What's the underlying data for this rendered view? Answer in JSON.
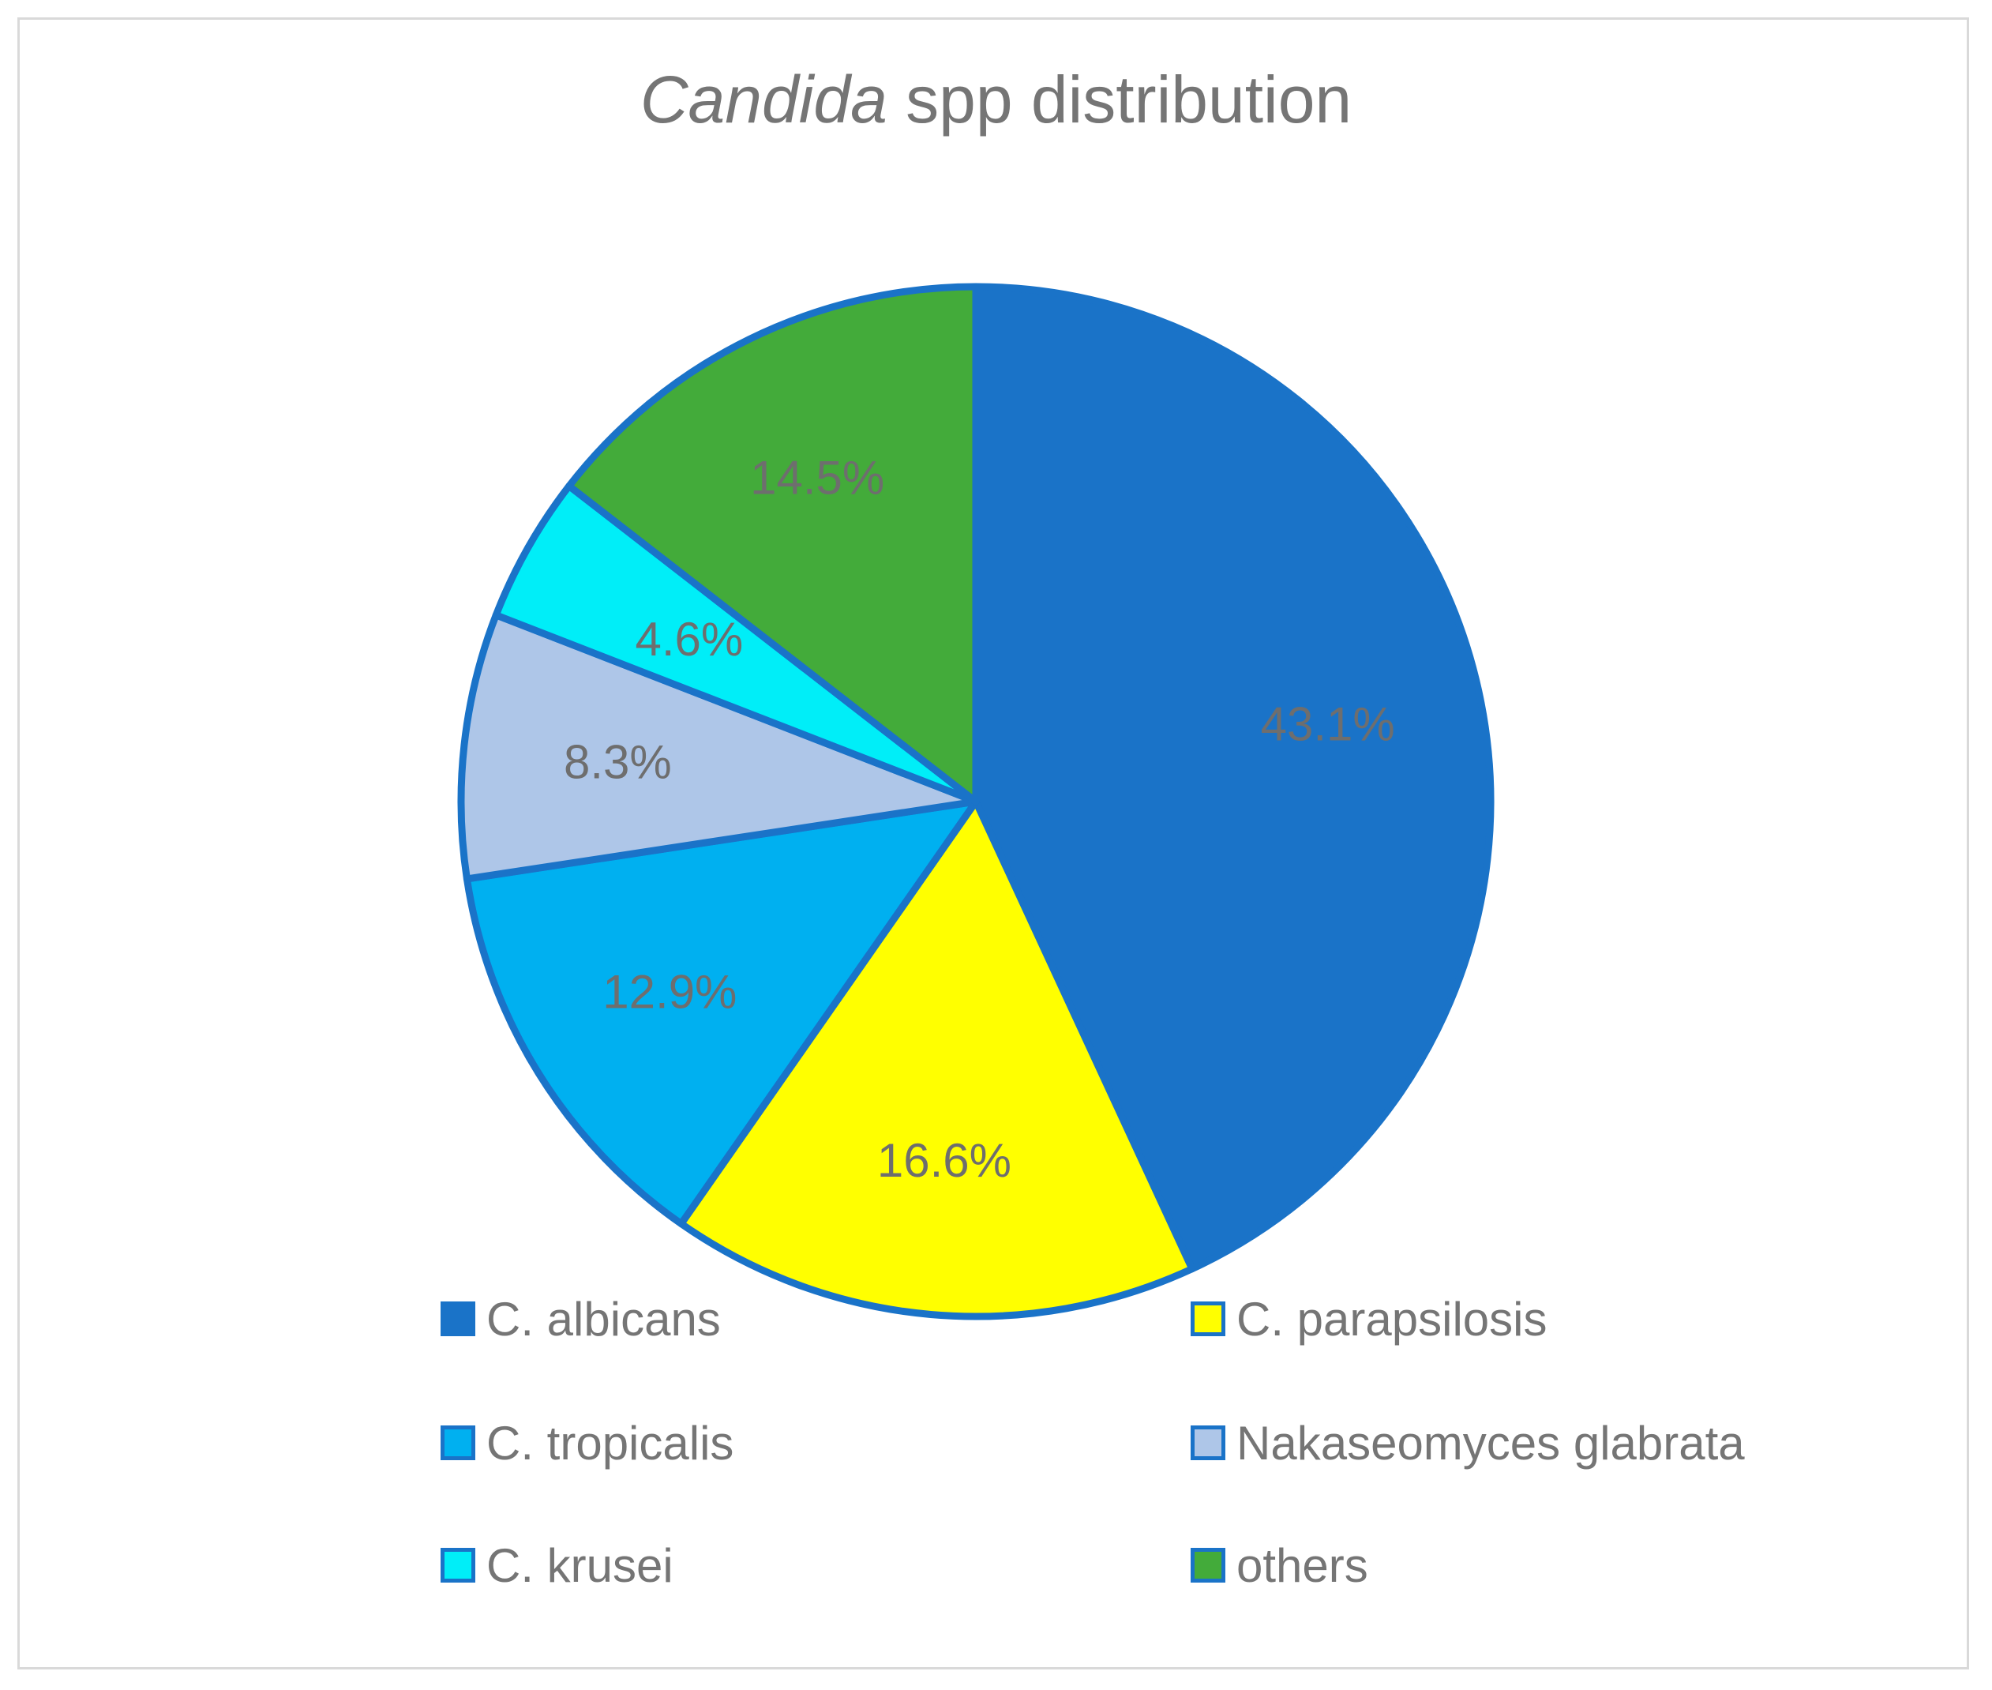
{
  "chart_data": {
    "type": "pie",
    "title": {
      "italic": "Candida",
      "rest": " spp distribution"
    },
    "slices": [
      {
        "name": "C. albicans",
        "value": 43.1,
        "label": "43.1%",
        "color": "#1a73c8"
      },
      {
        "name": "C. parapsilosis",
        "value": 16.6,
        "label": "16.6%",
        "color": "#ffff00"
      },
      {
        "name": "C. tropicalis",
        "value": 12.9,
        "label": "12.9%",
        "color": "#00b0f0"
      },
      {
        "name": "Nakaseomyces glabrata",
        "value": 8.3,
        "label": "8.3%",
        "color": "#aec6e8"
      },
      {
        "name": "C. krusei",
        "value": 4.6,
        "label": "4.6%",
        "color": "#00eef8"
      },
      {
        "name": "others",
        "value": 14.5,
        "label": "14.5%",
        "color": "#43ab3a"
      }
    ],
    "slice_border_color": "#1a73c8",
    "start_angle": "12 o'clock",
    "direction": "clockwise",
    "legend_position": "bottom",
    "data_label_color": "#6e6e6e"
  }
}
